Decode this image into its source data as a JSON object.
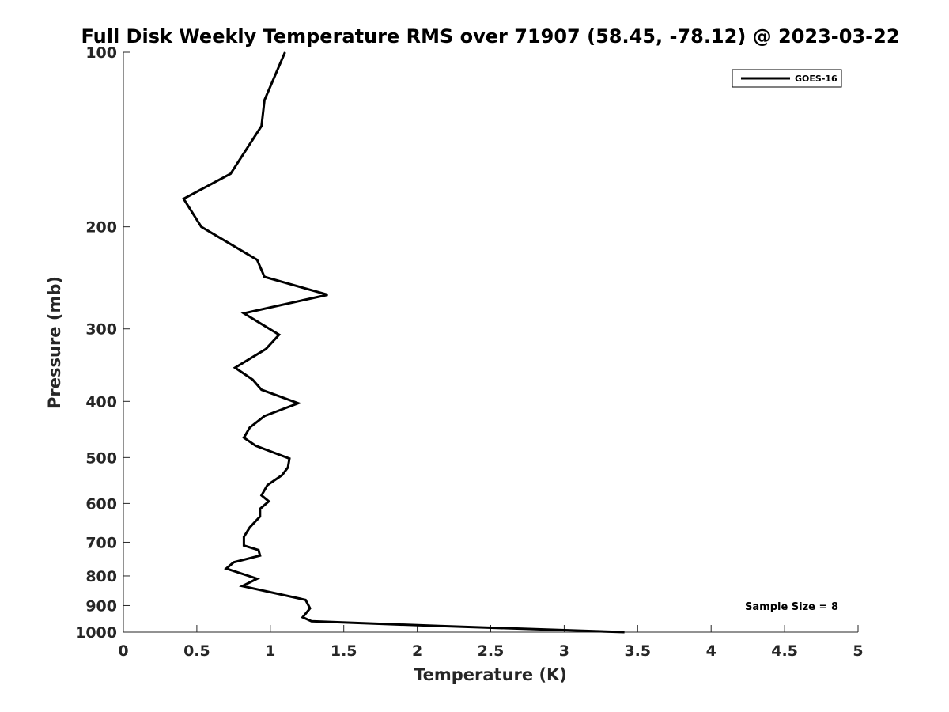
{
  "chart_data": {
    "type": "line",
    "title": "Full Disk Weekly Temperature RMS over 71907 (58.45, -78.12) @ 2023-03-22",
    "xlabel": "Temperature (K)",
    "ylabel": "Pressure (mb)",
    "xlim": [
      0,
      5
    ],
    "ylim": [
      100,
      1000
    ],
    "y_scale": "log",
    "y_reversed": true,
    "grid": false,
    "legend_position": "top-right",
    "x_ticks": [
      "0",
      "0.5",
      "1",
      "1.5",
      "2",
      "2.5",
      "3",
      "3.5",
      "4",
      "4.5",
      "5"
    ],
    "y_ticks": [
      "100",
      "200",
      "300",
      "400",
      "500",
      "600",
      "700",
      "800",
      "900",
      "1000"
    ],
    "annotation": "Sample Size = 8",
    "line_color": "#000000",
    "series": [
      {
        "name": "GOES-16",
        "x": [
          1.1,
          0.96,
          0.94,
          0.73,
          0.41,
          0.53,
          0.91,
          0.96,
          1.39,
          0.82,
          1.06,
          0.97,
          0.76,
          0.88,
          0.94,
          1.19,
          0.96,
          0.86,
          0.82,
          0.9,
          1.13,
          1.12,
          1.08,
          0.98,
          0.94,
          0.99,
          0.93,
          0.93,
          0.86,
          0.82,
          0.82,
          0.92,
          0.93,
          0.75,
          0.7,
          0.91,
          0.81,
          1.24,
          1.27,
          1.22,
          1.28,
          2.15,
          3.41
        ],
        "y": [
          100,
          121,
          134,
          162,
          179,
          200,
          228,
          244,
          262,
          282,
          307,
          325,
          350,
          367,
          382,
          403,
          424,
          444,
          462,
          477,
          502,
          520,
          536,
          558,
          581,
          595,
          613,
          632,
          660,
          685,
          709,
          722,
          738,
          758,
          777,
          809,
          833,
          880,
          910,
          943,
          958,
          976,
          1000
        ]
      }
    ]
  }
}
